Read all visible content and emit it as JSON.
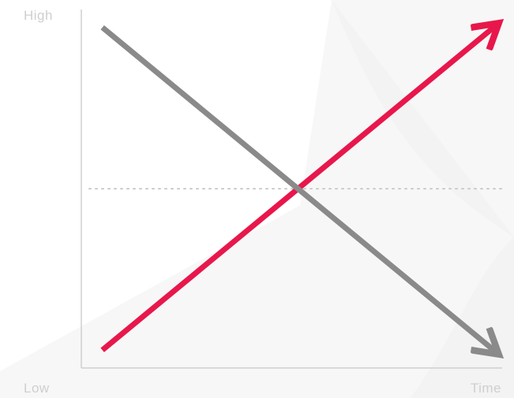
{
  "chart_data": {
    "type": "line",
    "title": "",
    "xlabel": "Time",
    "ylabel": "",
    "y_axis_labels": {
      "high": "High",
      "low": "Low"
    },
    "xlim": [
      0,
      1
    ],
    "ylim": [
      0,
      1
    ],
    "grid": false,
    "legend": "none",
    "reference_line": {
      "y": 0.5,
      "style": "dotted",
      "color": "#cccccc"
    },
    "series": [
      {
        "color": "#e8174b",
        "arrow": true,
        "x": [
          0.05,
          0.99
        ],
        "y": [
          0.05,
          0.96
        ]
      },
      {
        "color": "#8a8a8a",
        "arrow": true,
        "x": [
          0.05,
          0.99
        ],
        "y": [
          0.95,
          0.04
        ]
      }
    ]
  }
}
